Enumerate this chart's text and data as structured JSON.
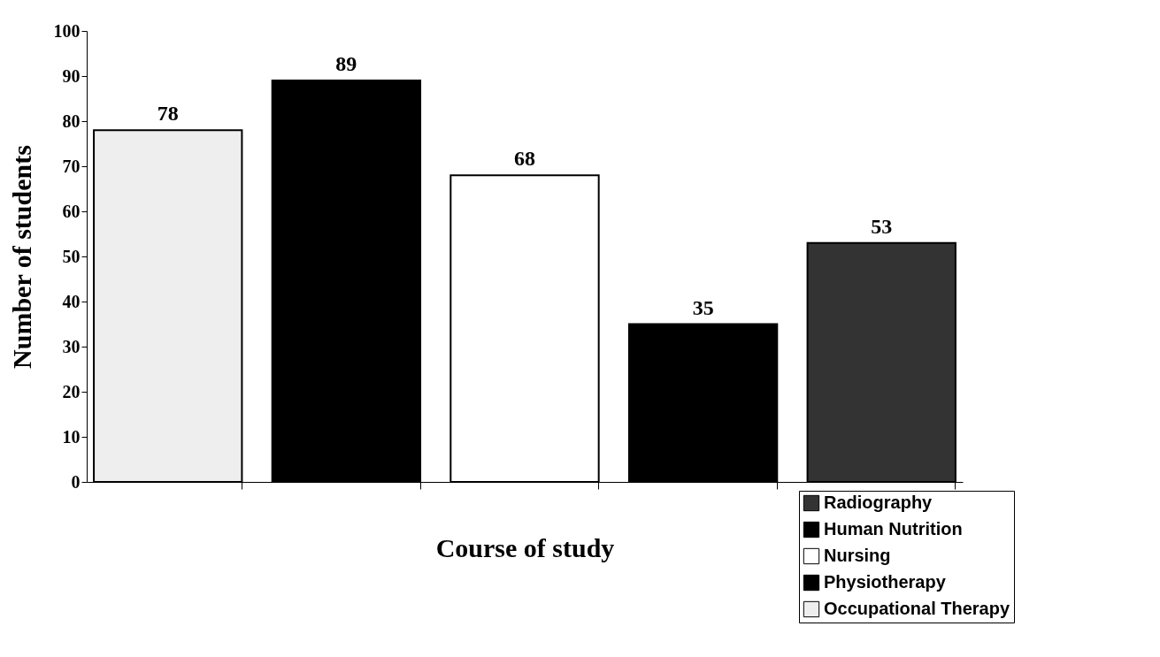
{
  "chart_data": {
    "type": "bar",
    "xlabel": "Course of study",
    "ylabel": "Number of students",
    "categories": [
      null,
      null,
      null,
      null,
      null
    ],
    "series": [
      {
        "name": "Radiography",
        "color": "#333333",
        "values": [
          null,
          null,
          null,
          null,
          53
        ]
      },
      {
        "name": "Human Nutrition",
        "color": "#000000",
        "values": [
          null,
          null,
          null,
          35,
          null
        ]
      },
      {
        "name": "Nursing",
        "color": "#ffffff",
        "values": [
          null,
          null,
          68,
          null,
          null
        ]
      },
      {
        "name": "Physiotherapy",
        "color": "#000000",
        "values": [
          null,
          89,
          null,
          null,
          null
        ]
      },
      {
        "name": "Occupational Therapy",
        "color": "#eeeeee",
        "values": [
          78,
          null,
          null,
          null,
          null
        ]
      }
    ],
    "ylim": [
      0,
      100
    ],
    "yticks": [
      0,
      10,
      20,
      30,
      40,
      50,
      60,
      70,
      80,
      90,
      100
    ],
    "data_labels": true,
    "grid": false,
    "legend": "bottom right"
  }
}
